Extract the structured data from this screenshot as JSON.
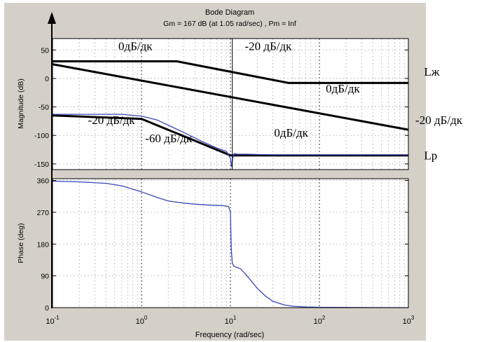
{
  "chart_data": {
    "type": "line",
    "title": "Bode Diagram",
    "subtitle": "Gm = 167 dB (at 1.05 rad/sec) ,  Pm = Inf",
    "xlabel": "Frequency  (rad/sec)",
    "x_scale": "log",
    "xlim": [
      0.1,
      1000
    ],
    "x_ticks": [
      {
        "value": 0.1,
        "base": "10",
        "exp": "-1"
      },
      {
        "value": 1,
        "base": "10",
        "exp": "0"
      },
      {
        "value": 10,
        "base": "10",
        "exp": "1"
      },
      {
        "value": 100,
        "base": "10",
        "exp": "2"
      },
      {
        "value": 1000,
        "base": "10",
        "exp": "3"
      }
    ],
    "grid": true,
    "magnitude": {
      "ylabel": "Magnitude (dB)",
      "ylim": [
        -160,
        70
      ],
      "yticks": [
        50,
        0,
        -50,
        -100,
        -150
      ],
      "ytick_labels": [
        "50",
        "0",
        "-50",
        "-100",
        "-150"
      ],
      "series": [
        {
          "role": "asymptote",
          "x": [
            0.1,
            2.5,
            45,
            1000
          ],
          "y": [
            30,
            30,
            -8,
            -8
          ]
        },
        {
          "role": "asymptote",
          "x": [
            0.1,
            1000
          ],
          "y": [
            25,
            -90
          ]
        },
        {
          "role": "asymptote",
          "x": [
            0.1,
            1,
            10,
            1000
          ],
          "y": [
            -65,
            -71,
            -135,
            -135
          ]
        },
        {
          "role": "computed",
          "x": [
            0.1,
            0.3,
            0.6,
            1,
            1.5,
            2,
            3,
            5,
            7,
            9,
            10,
            10.3,
            10.6,
            11,
            12,
            15,
            30,
            100,
            1000
          ],
          "y": [
            -63,
            -63,
            -63,
            -66,
            -73,
            -82,
            -95,
            -112,
            -122,
            -128,
            -140,
            -155,
            -140,
            -132,
            -133,
            -133,
            -134,
            -134,
            -134
          ]
        }
      ],
      "vline_x": 10.5,
      "annotations": [
        {
          "text": "0дБ/дк",
          "x": 0.55,
          "y": 50
        },
        {
          "text": "-20 дБ/дк",
          "x": 14.5,
          "y": 50
        },
        {
          "text": "Lж",
          "x": 1500,
          "y": 5
        },
        {
          "text": "0дБ/дк",
          "x": 118,
          "y": -25
        },
        {
          "text": "-20 дБ/дк",
          "x": 0.25,
          "y": -80
        },
        {
          "text": "-20 дБ/дк",
          "x": 1200,
          "y": -80
        },
        {
          "text": "-60 дБ/дк",
          "x": 1.1,
          "y": -112
        },
        {
          "text": "0дБ/дк",
          "x": 31,
          "y": -102
        },
        {
          "text": "Lp",
          "x": 1500,
          "y": -142
        }
      ]
    },
    "phase": {
      "ylabel": "Phase (deg)",
      "ylim": [
        0,
        365
      ],
      "yticks": [
        360,
        270,
        180,
        90,
        0
      ],
      "ytick_labels": [
        "360",
        "270",
        "180",
        "90",
        "0"
      ],
      "series": [
        {
          "role": "phase",
          "x": [
            0.1,
            0.2,
            0.4,
            0.6,
            1,
            1.5,
            2,
            3,
            4,
            6,
            8,
            9.5,
            10,
            10.2,
            10.5,
            11,
            13,
            16,
            20,
            25,
            30,
            40,
            50,
            70,
            100,
            200,
            1000
          ],
          "y": [
            358,
            356,
            352,
            345,
            328,
            312,
            302,
            296,
            293,
            290,
            289,
            287,
            270,
            170,
            125,
            117,
            110,
            85,
            55,
            32,
            18,
            8,
            4,
            2,
            1,
            0.5,
            0
          ]
        }
      ]
    },
    "colors": {
      "computed": "#3a46b8",
      "asymptote": "#000000",
      "axis": "#000000",
      "grid": "#b8b8b8",
      "frame": "#d4d0c8"
    }
  }
}
